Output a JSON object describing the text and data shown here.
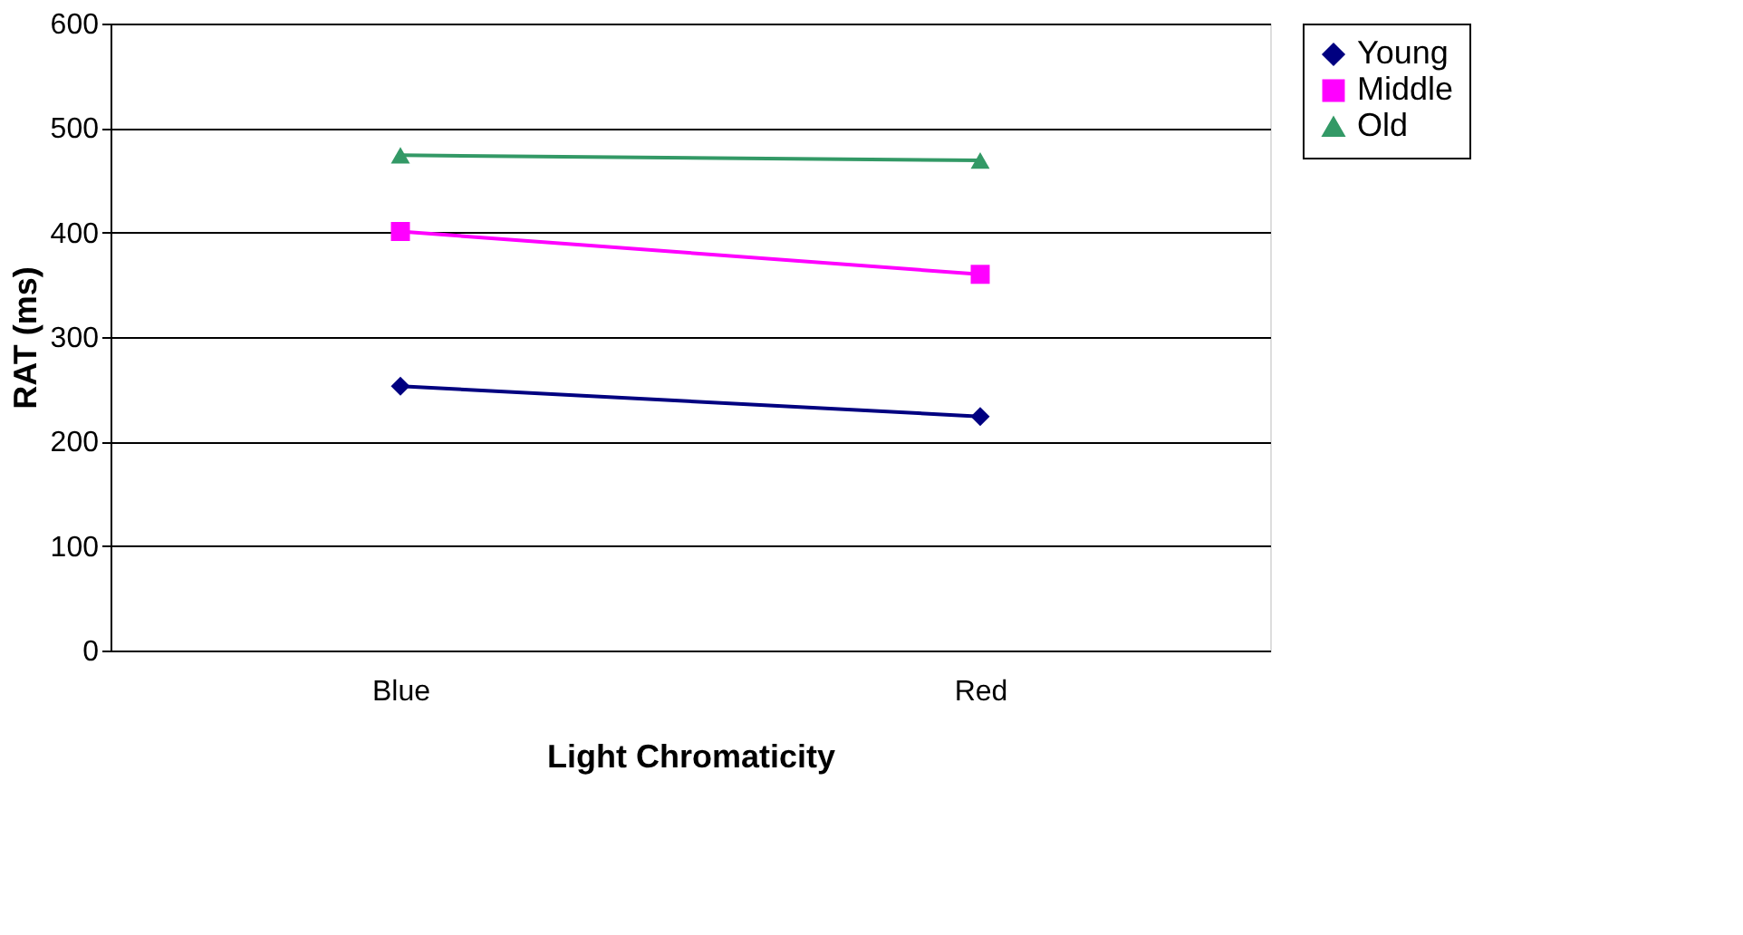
{
  "chart_data": {
    "type": "line",
    "xlabel": "Light Chromaticity",
    "ylabel": "RAT (ms)",
    "categories": [
      "Blue",
      "Red"
    ],
    "series": [
      {
        "name": "Young",
        "color": "#000080",
        "marker": "diamond",
        "values": [
          253,
          224
        ]
      },
      {
        "name": "Middle",
        "color": "#ff00ff",
        "marker": "square",
        "values": [
          401,
          360
        ]
      },
      {
        "name": "Old",
        "color": "#339966",
        "marker": "triangle",
        "values": [
          474,
          469
        ]
      }
    ],
    "ylim": [
      0,
      600
    ],
    "yticks": [
      0,
      100,
      200,
      300,
      400,
      500,
      600
    ],
    "grid": "y",
    "legend": "right",
    "line_style": "solid"
  }
}
